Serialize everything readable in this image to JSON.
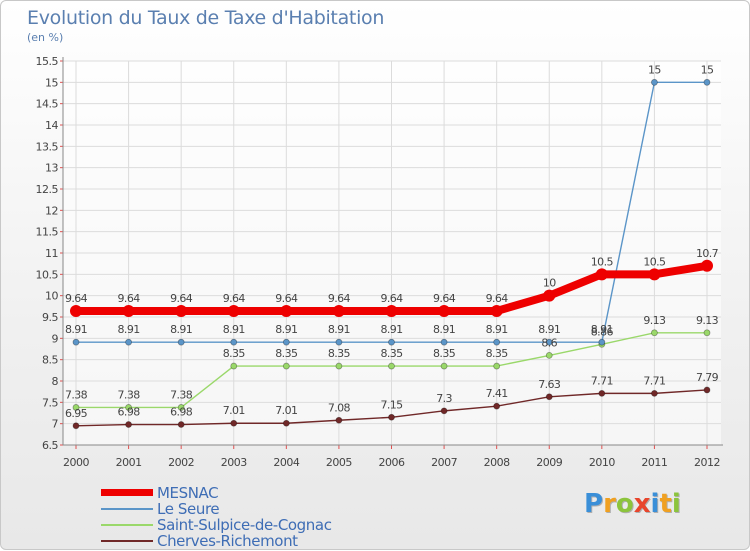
{
  "title": "Evolution du Taux de Taxe d'Habitation",
  "subtitle": "(en %)",
  "logo": {
    "text": "Proxiti",
    "letters": [
      {
        "ch": "P",
        "color": "#3a8fd8"
      },
      {
        "ch": "r",
        "color": "#f0a020"
      },
      {
        "ch": "o",
        "color": "#8cc43c"
      },
      {
        "ch": "x",
        "color": "#e8452c"
      },
      {
        "ch": "i",
        "color": "#3a8fd8"
      },
      {
        "ch": "t",
        "color": "#f0a020"
      },
      {
        "ch": "i",
        "color": "#8cc43c"
      }
    ]
  },
  "chart_data": {
    "type": "line",
    "x": [
      "2000",
      "2001",
      "2002",
      "2003",
      "2004",
      "2005",
      "2006",
      "2007",
      "2008",
      "2009",
      "2010",
      "2011",
      "2012"
    ],
    "ylim": [
      6.5,
      15.5
    ],
    "yticks": [
      "6.5",
      "7",
      "7.5",
      "8",
      "8.5",
      "9",
      "9.5",
      "10",
      "10.5",
      "11",
      "11.5",
      "12",
      "12.5",
      "13",
      "13.5",
      "14",
      "14.5",
      "15",
      "15.5"
    ],
    "grid": true,
    "legend_position": "bottom-left",
    "series": [
      {
        "name": "MESNAC",
        "color": "#ee0000",
        "values": [
          9.64,
          9.64,
          9.64,
          9.64,
          9.64,
          9.64,
          9.64,
          9.64,
          9.64,
          10,
          10.5,
          10.5,
          10.7
        ],
        "labels": [
          "9.64",
          "9.64",
          "9.64",
          "9.64",
          "9.64",
          "9.64",
          "9.64",
          "9.64",
          "9.64",
          "10",
          "10.5",
          "10.5",
          "10.7"
        ]
      },
      {
        "name": "Le Seure",
        "color": "#5b95c8",
        "values": [
          8.91,
          8.91,
          8.91,
          8.91,
          8.91,
          8.91,
          8.91,
          8.91,
          8.91,
          8.91,
          8.91,
          15,
          15
        ],
        "labels": [
          "8.91",
          "8.91",
          "8.91",
          "8.91",
          "8.91",
          "8.91",
          "8.91",
          "8.91",
          "8.91",
          "8.91",
          "8.91",
          "15",
          "15"
        ]
      },
      {
        "name": "Saint-Sulpice-de-Cognac",
        "color": "#9ad86a",
        "values": [
          7.38,
          7.38,
          7.38,
          8.35,
          8.35,
          8.35,
          8.35,
          8.35,
          8.35,
          8.6,
          8.86,
          9.13,
          9.13
        ],
        "labels": [
          "7.38",
          "7.38",
          "7.38",
          "8.35",
          "8.35",
          "8.35",
          "8.35",
          "8.35",
          "8.35",
          "8.6",
          "8.86",
          "9.13",
          "9.13"
        ]
      },
      {
        "name": "Cherves-Richemont",
        "color": "#702828",
        "values": [
          6.95,
          6.98,
          6.98,
          7.01,
          7.01,
          7.08,
          7.15,
          7.3,
          7.41,
          7.63,
          7.71,
          7.71,
          7.79
        ],
        "labels": [
          "6.95",
          "6.98",
          "6.98",
          "7.01",
          "7.01",
          "7.08",
          "7.15",
          "7.3",
          "7.41",
          "7.63",
          "7.71",
          "7.71",
          "7.79"
        ]
      }
    ]
  }
}
